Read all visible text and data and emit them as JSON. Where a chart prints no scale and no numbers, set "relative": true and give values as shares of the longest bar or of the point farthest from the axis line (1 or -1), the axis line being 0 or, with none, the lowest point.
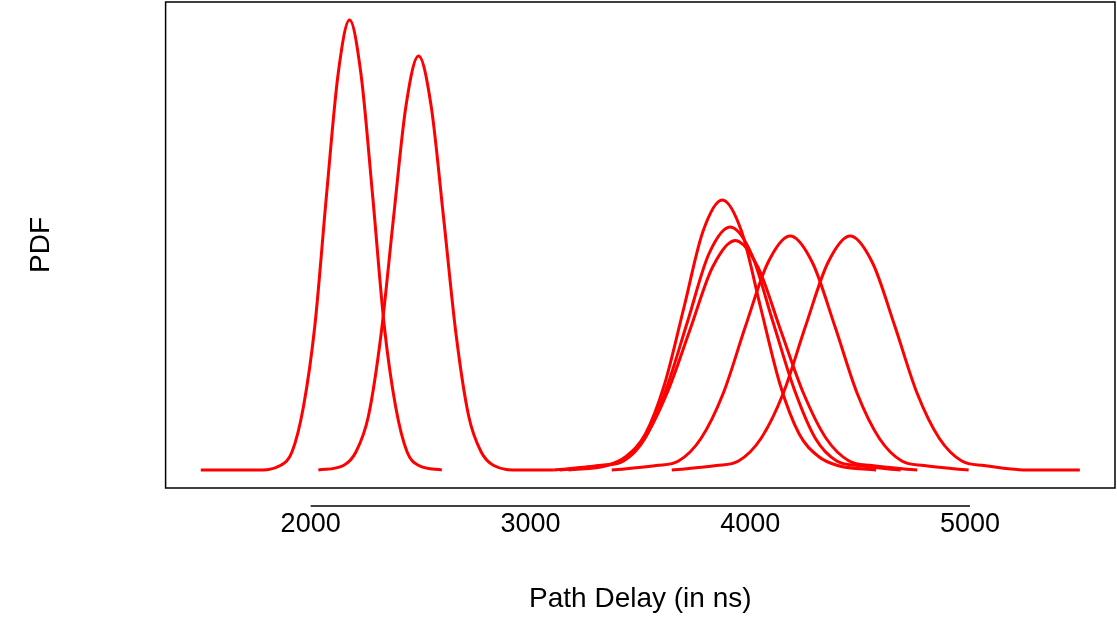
{
  "chart_data": {
    "type": "line",
    "xlabel": "Path Delay (in ns)",
    "ylabel": "PDF",
    "relative": true,
    "xlim": [
      1340,
      5660
    ],
    "xticks": [
      2000,
      3000,
      4000,
      5000
    ],
    "tick_labels": "x",
    "grid": false,
    "legend": false,
    "marker": "none",
    "line_style": "solid",
    "series": [
      {
        "color": "#ff0000",
        "x": [
          1500,
          1757,
          1862,
          1915,
          1967,
          2019,
          2072,
          2125,
          2177,
          2229,
          2282,
          2335,
          2387,
          2439,
          2492,
          2597
        ],
        "values": [
          0,
          0,
          0.01,
          0.04,
          0.14,
          0.32,
          0.61,
          0.88,
          1,
          0.88,
          0.61,
          0.32,
          0.14,
          0.04,
          0.01,
          0
        ]
      },
      {
        "color": "#ff0000",
        "x": [
          2035,
          2149,
          2206,
          2263,
          2320,
          2377,
          2434,
          2491,
          2548,
          2605,
          2662,
          2719,
          2776,
          2833,
          2947,
          3104
        ],
        "values": [
          0,
          0.01,
          0.04,
          0.12,
          0.3,
          0.56,
          0.81,
          0.92,
          0.81,
          0.56,
          0.3,
          0.12,
          0.04,
          0.01,
          0,
          0
        ]
      },
      {
        "color": "#ff0000",
        "x": [
          3173,
          3348,
          3435,
          3523,
          3610,
          3698,
          3785,
          3873,
          3961,
          4048,
          4136,
          4223,
          4311,
          4398,
          4573
        ],
        "values": [
          0,
          0.01,
          0.03,
          0.08,
          0.19,
          0.36,
          0.53,
          0.6,
          0.53,
          0.36,
          0.19,
          0.08,
          0.03,
          0.01,
          0
        ]
      },
      {
        "color": "#ff0000",
        "x": [
          3133,
          3327,
          3424,
          3521,
          3618,
          3715,
          3812,
          3909,
          4006,
          4103,
          4200,
          4297,
          4394,
          4491,
          4685
        ],
        "values": [
          0,
          0.01,
          0.02,
          0.07,
          0.18,
          0.33,
          0.48,
          0.54,
          0.48,
          0.33,
          0.18,
          0.07,
          0.02,
          0.01,
          0
        ]
      },
      {
        "color": "#ff0000",
        "x": [
          3104,
          3311,
          3414,
          3518,
          3621,
          3725,
          3828,
          3932,
          4036,
          4139,
          4243,
          4346,
          4450,
          4553,
          4760
        ],
        "values": [
          0,
          0.01,
          0.02,
          0.07,
          0.17,
          0.31,
          0.45,
          0.51,
          0.45,
          0.31,
          0.17,
          0.07,
          0.02,
          0.01,
          0
        ]
      },
      {
        "color": "#ff0000",
        "x": [
          3370,
          3573,
          3674,
          3776,
          3877,
          3979,
          4080,
          4182,
          4284,
          4385,
          4487,
          4588,
          4690,
          4791,
          4994
        ],
        "values": [
          0,
          0.01,
          0.02,
          0.07,
          0.17,
          0.32,
          0.46,
          0.52,
          0.46,
          0.32,
          0.17,
          0.07,
          0.02,
          0.01,
          0
        ]
      },
      {
        "color": "#ff0000",
        "x": [
          3643,
          3846,
          3947,
          4049,
          4150,
          4252,
          4353,
          4455,
          4557,
          4658,
          4760,
          4861,
          4963,
          5064,
          5267,
          5500
        ],
        "values": [
          0,
          0.01,
          0.02,
          0.07,
          0.17,
          0.32,
          0.46,
          0.52,
          0.46,
          0.32,
          0.17,
          0.07,
          0.02,
          0.01,
          0,
          0
        ]
      }
    ]
  }
}
